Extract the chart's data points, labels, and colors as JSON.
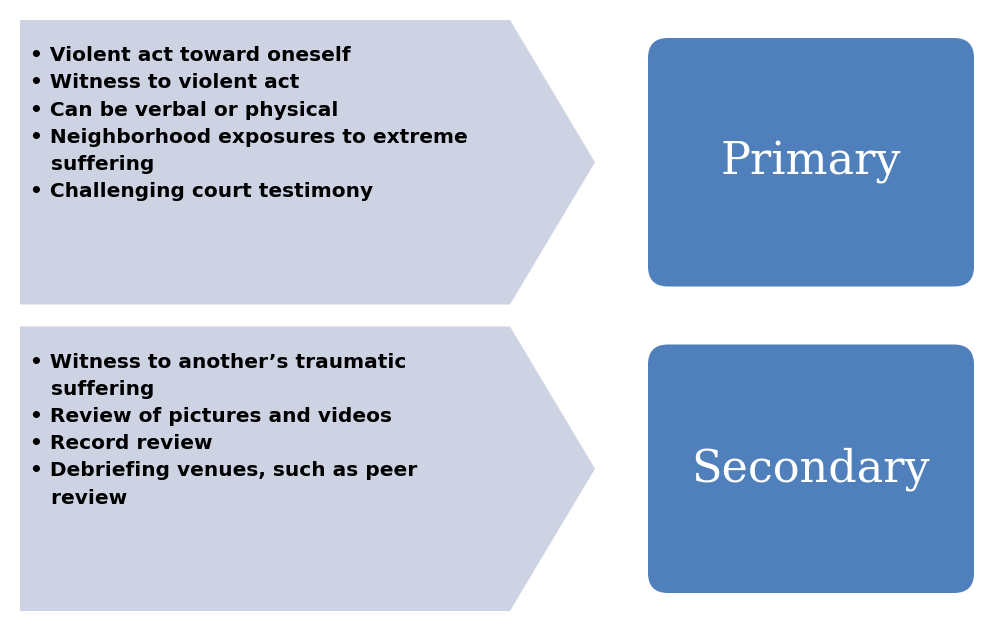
{
  "background_color": "#ffffff",
  "arrow_color": "#cdd3e3",
  "box_color": "#5080bc",
  "box_text_color": "#ffffff",
  "bullet_text_color": "#000000",
  "primary_label": "Primary",
  "secondary_label": "Secondary",
  "primary_bullets": [
    "• Violent act toward oneself",
    "• Witness to violent act",
    "• Can be verbal or physical",
    "• Neighborhood exposures to extreme\n   suffering",
    "• Challenging court testimony"
  ],
  "secondary_bullets": [
    "• Witness to another’s traumatic\n   suffering",
    "• Review of pictures and videos",
    "• Record review",
    "• Debriefing venues, such as peer\n   review"
  ],
  "label_fontsize": 32,
  "bullet_fontsize": 14.5,
  "fig_width": 9.94,
  "fig_height": 6.31,
  "dpi": 100
}
